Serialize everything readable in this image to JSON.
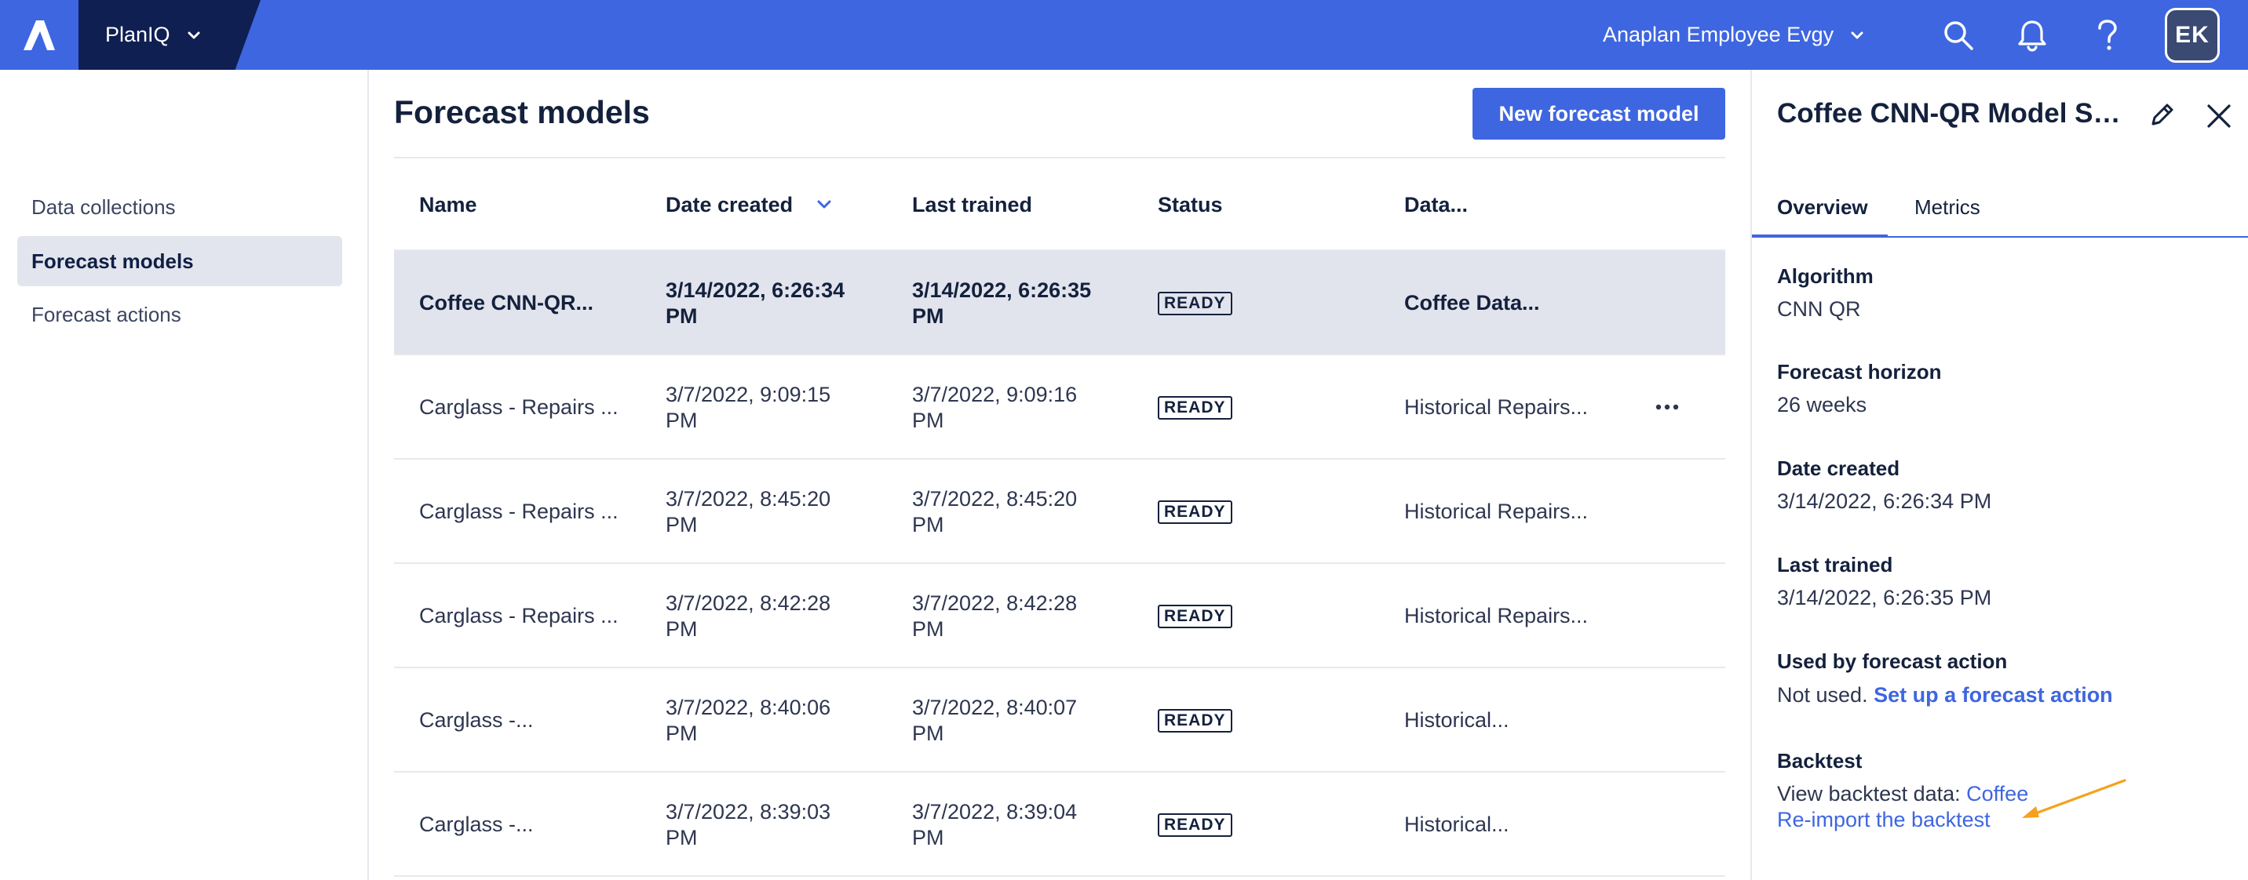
{
  "topbar": {
    "logo": "anaplan-logo-icon",
    "app_name": "PlanIQ",
    "workspace": "Anaplan Employee Evgy",
    "avatar_initials": "EK",
    "icons": [
      "search-icon",
      "bell-icon",
      "help-icon"
    ]
  },
  "sidebar": {
    "items": [
      {
        "label": "Data collections"
      },
      {
        "label": "Forecast models"
      },
      {
        "label": "Forecast actions"
      }
    ]
  },
  "main": {
    "title": "Forecast models",
    "new_button": "New forecast model",
    "columns": [
      "Name",
      "Date created",
      "Last trained",
      "Status",
      "Data..."
    ],
    "rows": [
      {
        "name": "Coffee CNN-QR...",
        "created_1": "3/14/2022, 6:26:34",
        "created_2": "PM",
        "trained_1": "3/14/2022, 6:26:35",
        "trained_2": "PM",
        "status": "READY",
        "data": "Coffee Data..."
      },
      {
        "name": "Carglass - Repairs ...",
        "created_1": "3/7/2022, 9:09:15",
        "created_2": "PM",
        "trained_1": "3/7/2022, 9:09:16",
        "trained_2": "PM",
        "status": "READY",
        "data": "Historical Repairs..."
      },
      {
        "name": "Carglass - Repairs ...",
        "created_1": "3/7/2022, 8:45:20",
        "created_2": "PM",
        "trained_1": "3/7/2022, 8:45:20",
        "trained_2": "PM",
        "status": "READY",
        "data": "Historical Repairs..."
      },
      {
        "name": "Carglass - Repairs ...",
        "created_1": "3/7/2022, 8:42:28",
        "created_2": "PM",
        "trained_1": "3/7/2022, 8:42:28",
        "trained_2": "PM",
        "status": "READY",
        "data": "Historical Repairs..."
      },
      {
        "name": "Carglass -...",
        "created_1": "3/7/2022, 8:40:06",
        "created_2": "PM",
        "trained_1": "3/7/2022, 8:40:07",
        "trained_2": "PM",
        "status": "READY",
        "data": "Historical..."
      },
      {
        "name": "Carglass -...",
        "created_1": "3/7/2022, 8:39:03",
        "created_2": "PM",
        "trained_1": "3/7/2022, 8:39:04",
        "trained_2": "PM",
        "status": "READY",
        "data": "Historical..."
      }
    ]
  },
  "panel": {
    "title": "Coffee CNN-QR Model Se...",
    "tabs": [
      "Overview",
      "Metrics"
    ],
    "fields": {
      "algorithm_label": "Algorithm",
      "algorithm_value": "CNN QR",
      "horizon_label": "Forecast horizon",
      "horizon_value": "26 weeks",
      "created_label": "Date created",
      "created_value": "3/14/2022, 6:26:34 PM",
      "trained_label": "Last trained",
      "trained_value": "3/14/2022, 6:26:35 PM",
      "used_label": "Used by forecast action",
      "used_value": "Not used.",
      "used_link": "Set up a forecast action",
      "backtest_label": "Backtest",
      "backtest_value": "View backtest data:",
      "backtest_link": "Coffee",
      "reimport_link": "Re-import the backtest"
    }
  },
  "colors": {
    "topbar": "#3e66e0",
    "app_switch": "#0f1f52",
    "selected_row": "#e2e4ed",
    "arrow": "#f5a11c"
  }
}
